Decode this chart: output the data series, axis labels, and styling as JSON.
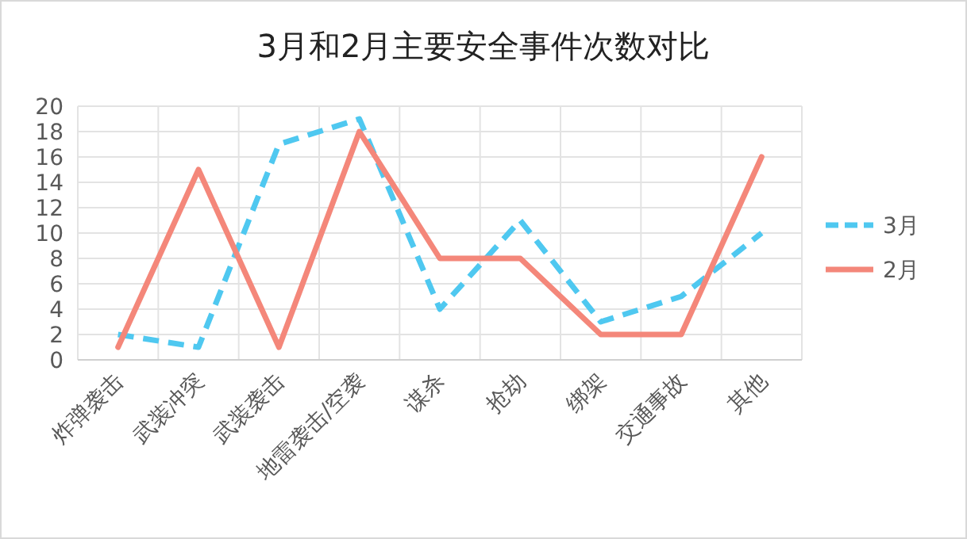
{
  "chart_data": {
    "type": "line",
    "title": "3月和2月主要安全事件次数对比",
    "categories": [
      "炸弹袭击",
      "武装冲突",
      "武装袭击",
      "地雷袭击/空袭",
      "谋杀",
      "抢劫",
      "绑架",
      "交通事故",
      "其他"
    ],
    "series": [
      {
        "name": "3月",
        "color": "#4fc8f0",
        "line_style": "dashed",
        "values": [
          2,
          1,
          17,
          19,
          4,
          11,
          3,
          5,
          10
        ]
      },
      {
        "name": "2月",
        "color": "#f4877a",
        "line_style": "solid",
        "values": [
          1,
          15,
          1,
          18,
          8,
          8,
          2,
          2,
          16
        ]
      }
    ],
    "ylim": [
      0,
      20
    ],
    "yticks": [
      0,
      2,
      4,
      6,
      8,
      10,
      12,
      14,
      16,
      18,
      20
    ],
    "grid": true,
    "legend": "right"
  }
}
